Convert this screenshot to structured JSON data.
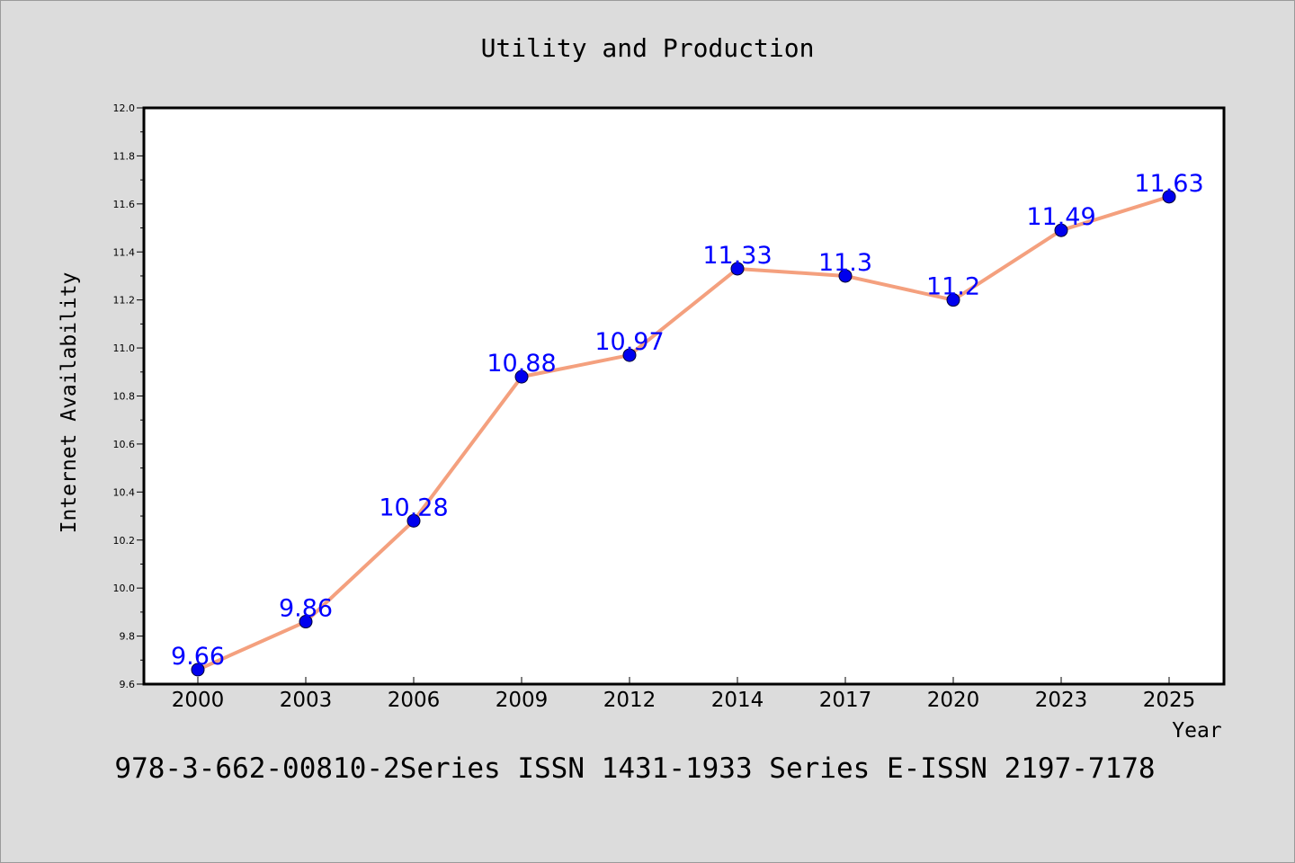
{
  "chart_data": {
    "type": "line",
    "title": "Utility and Production",
    "xlabel": "Year",
    "ylabel": "Internet Availability",
    "categories": [
      "2000",
      "2003",
      "2006",
      "2009",
      "2012",
      "2014",
      "2017",
      "2020",
      "2023",
      "2025"
    ],
    "values": [
      9.66,
      9.86,
      10.28,
      10.88,
      10.97,
      11.33,
      11.3,
      11.2,
      11.49,
      11.63
    ],
    "data_labels": [
      "9.66",
      "9.86",
      "10.28",
      "10.88",
      "10.97",
      "11.33",
      "11.3",
      "11.2",
      "11.49",
      "11.63"
    ],
    "ylim": [
      9.6,
      12.0
    ],
    "yticks": [
      "9.6",
      "9.8",
      "10.0",
      "10.2",
      "10.4",
      "10.6",
      "10.8",
      "11.0",
      "11.2",
      "11.4",
      "11.6",
      "11.8",
      "12.0"
    ],
    "grid": false,
    "line_color": "#f4a07e",
    "marker_color": "#0000ee",
    "label_color": "#0000ff"
  },
  "footer_text": "978-3-662-00810-2Series ISSN 1431-1933 Series E-ISSN 2197-7178"
}
